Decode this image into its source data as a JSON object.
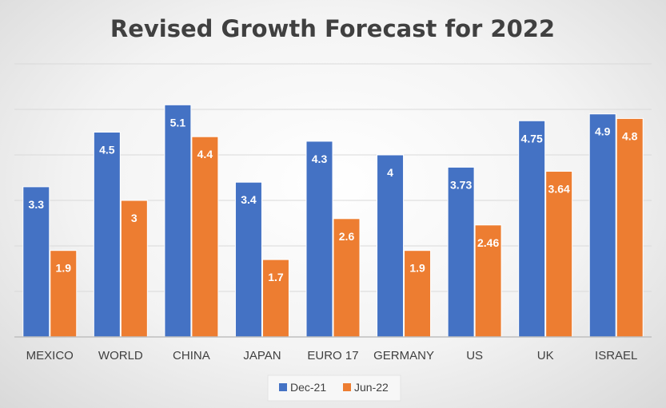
{
  "chart_data": {
    "type": "bar",
    "title": "Revised Growth Forecast for 2022",
    "categories": [
      "MEXICO",
      "WORLD",
      "CHINA",
      "JAPAN",
      "EURO 17",
      "GERMANY",
      "US",
      "UK",
      "ISRAEL"
    ],
    "series": [
      {
        "name": "Dec-21",
        "color": "#4472C4",
        "values": [
          3.3,
          4.5,
          5.1,
          3.4,
          4.3,
          4,
          3.73,
          4.75,
          4.9
        ],
        "labels": [
          "3.3",
          "4.5",
          "5.1",
          "3.4",
          "4.3",
          "4",
          "3.73",
          "4.75",
          "4.9"
        ]
      },
      {
        "name": "Jun-22",
        "color": "#ED7D31",
        "values": [
          1.9,
          3,
          4.4,
          1.7,
          2.6,
          1.9,
          2.46,
          3.64,
          4.8
        ],
        "labels": [
          "1.9",
          "3",
          "4.4",
          "1.7",
          "2.6",
          "1.9",
          "2.46",
          "3.64",
          "4.8"
        ]
      }
    ],
    "ylim": [
      0,
      6
    ],
    "gridlines": true,
    "legend_position": "bottom",
    "xlabel": "",
    "ylabel": ""
  }
}
